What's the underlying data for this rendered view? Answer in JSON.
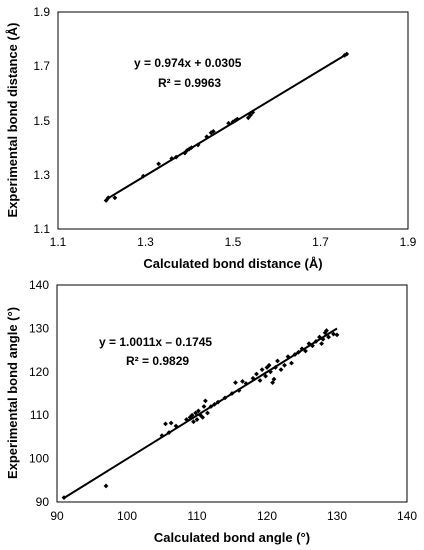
{
  "chart_data": [
    {
      "type": "scatter",
      "xlabel": "Calculated bond distance  (Å)",
      "ylabel": "Experimental bond distance (Å)",
      "xlim": [
        1.1,
        1.9
      ],
      "ylim": [
        1.1,
        1.9
      ],
      "xticks": [
        "1.1",
        "1.3",
        "1.5",
        "1.7",
        "1.9"
      ],
      "yticks": [
        "1.1",
        "1.3",
        "1.5",
        "1.7",
        "1.9"
      ],
      "annotations": [
        "y = 0.974x + 0.0305",
        "R² = 0.9963"
      ],
      "trendline": {
        "slope": 0.974,
        "intercept": 0.0305,
        "x_range": [
          1.21,
          1.76
        ]
      },
      "points": [
        [
          1.21,
          1.205
        ],
        [
          1.215,
          1.215
        ],
        [
          1.23,
          1.215
        ],
        [
          1.295,
          1.295
        ],
        [
          1.33,
          1.34
        ],
        [
          1.36,
          1.36
        ],
        [
          1.37,
          1.365
        ],
        [
          1.39,
          1.38
        ],
        [
          1.395,
          1.39
        ],
        [
          1.4,
          1.395
        ],
        [
          1.405,
          1.4
        ],
        [
          1.42,
          1.41
        ],
        [
          1.44,
          1.44
        ],
        [
          1.45,
          1.455
        ],
        [
          1.455,
          1.46
        ],
        [
          1.49,
          1.49
        ],
        [
          1.5,
          1.495
        ],
        [
          1.505,
          1.5
        ],
        [
          1.51,
          1.505
        ],
        [
          1.535,
          1.51
        ],
        [
          1.54,
          1.52
        ],
        [
          1.545,
          1.53
        ],
        [
          1.755,
          1.74
        ],
        [
          1.76,
          1.745
        ]
      ]
    },
    {
      "type": "scatter",
      "xlabel": "Calculated bond angle  (°)",
      "ylabel": "Experimental bond angle (°)",
      "xlim": [
        90,
        140
      ],
      "ylim": [
        90,
        140
      ],
      "xticks": [
        "90",
        "100",
        "110",
        "120",
        "130",
        "140"
      ],
      "yticks": [
        "90",
        "100",
        "110",
        "120",
        "130",
        "140"
      ],
      "annotations": [
        "y = 1.0011x – 0.1745",
        "R² = 0.9829"
      ],
      "trendline": {
        "slope": 1.0011,
        "intercept": -0.1745,
        "x_range": [
          91,
          130
        ]
      },
      "points": [
        [
          91,
          91
        ],
        [
          97,
          93.7
        ],
        [
          105,
          105.3
        ],
        [
          105.5,
          108
        ],
        [
          106,
          106
        ],
        [
          106.3,
          108.2
        ],
        [
          107,
          107.5
        ],
        [
          108.5,
          109
        ],
        [
          109,
          109.5
        ],
        [
          109.3,
          110
        ],
        [
          109.5,
          108.5
        ],
        [
          109.8,
          110.5
        ],
        [
          110,
          109
        ],
        [
          110.2,
          111
        ],
        [
          110.5,
          110
        ],
        [
          110.8,
          109.5
        ],
        [
          111,
          112
        ],
        [
          111.2,
          113.3
        ],
        [
          111.5,
          110.5
        ],
        [
          112,
          112
        ],
        [
          112.5,
          112.5
        ],
        [
          113,
          113
        ],
        [
          114,
          114
        ],
        [
          115,
          115
        ],
        [
          115.5,
          117.5
        ],
        [
          116,
          115.7
        ],
        [
          116.5,
          117.8
        ],
        [
          117,
          117.3
        ],
        [
          118,
          118.5
        ],
        [
          118.5,
          119.5
        ],
        [
          119,
          118
        ],
        [
          119.3,
          120.5
        ],
        [
          119.8,
          119
        ],
        [
          120,
          121
        ],
        [
          120.3,
          121.5
        ],
        [
          120.5,
          120
        ],
        [
          120.8,
          117.5
        ],
        [
          121,
          118.3
        ],
        [
          121.2,
          121
        ],
        [
          121.5,
          122.5
        ],
        [
          122,
          120.5
        ],
        [
          122.5,
          121.5
        ],
        [
          123,
          123.5
        ],
        [
          123.5,
          122
        ],
        [
          124,
          124
        ],
        [
          124.5,
          124.5
        ],
        [
          125,
          125.3
        ],
        [
          125.5,
          124.8
        ],
        [
          126,
          126.5
        ],
        [
          126.5,
          126
        ],
        [
          127,
          127
        ],
        [
          127.5,
          128
        ],
        [
          127.8,
          126.5
        ],
        [
          128,
          127.5
        ],
        [
          128.3,
          129
        ],
        [
          128.5,
          129.5
        ],
        [
          128.8,
          128
        ],
        [
          129.5,
          128.7
        ],
        [
          130,
          128.5
        ]
      ]
    }
  ]
}
